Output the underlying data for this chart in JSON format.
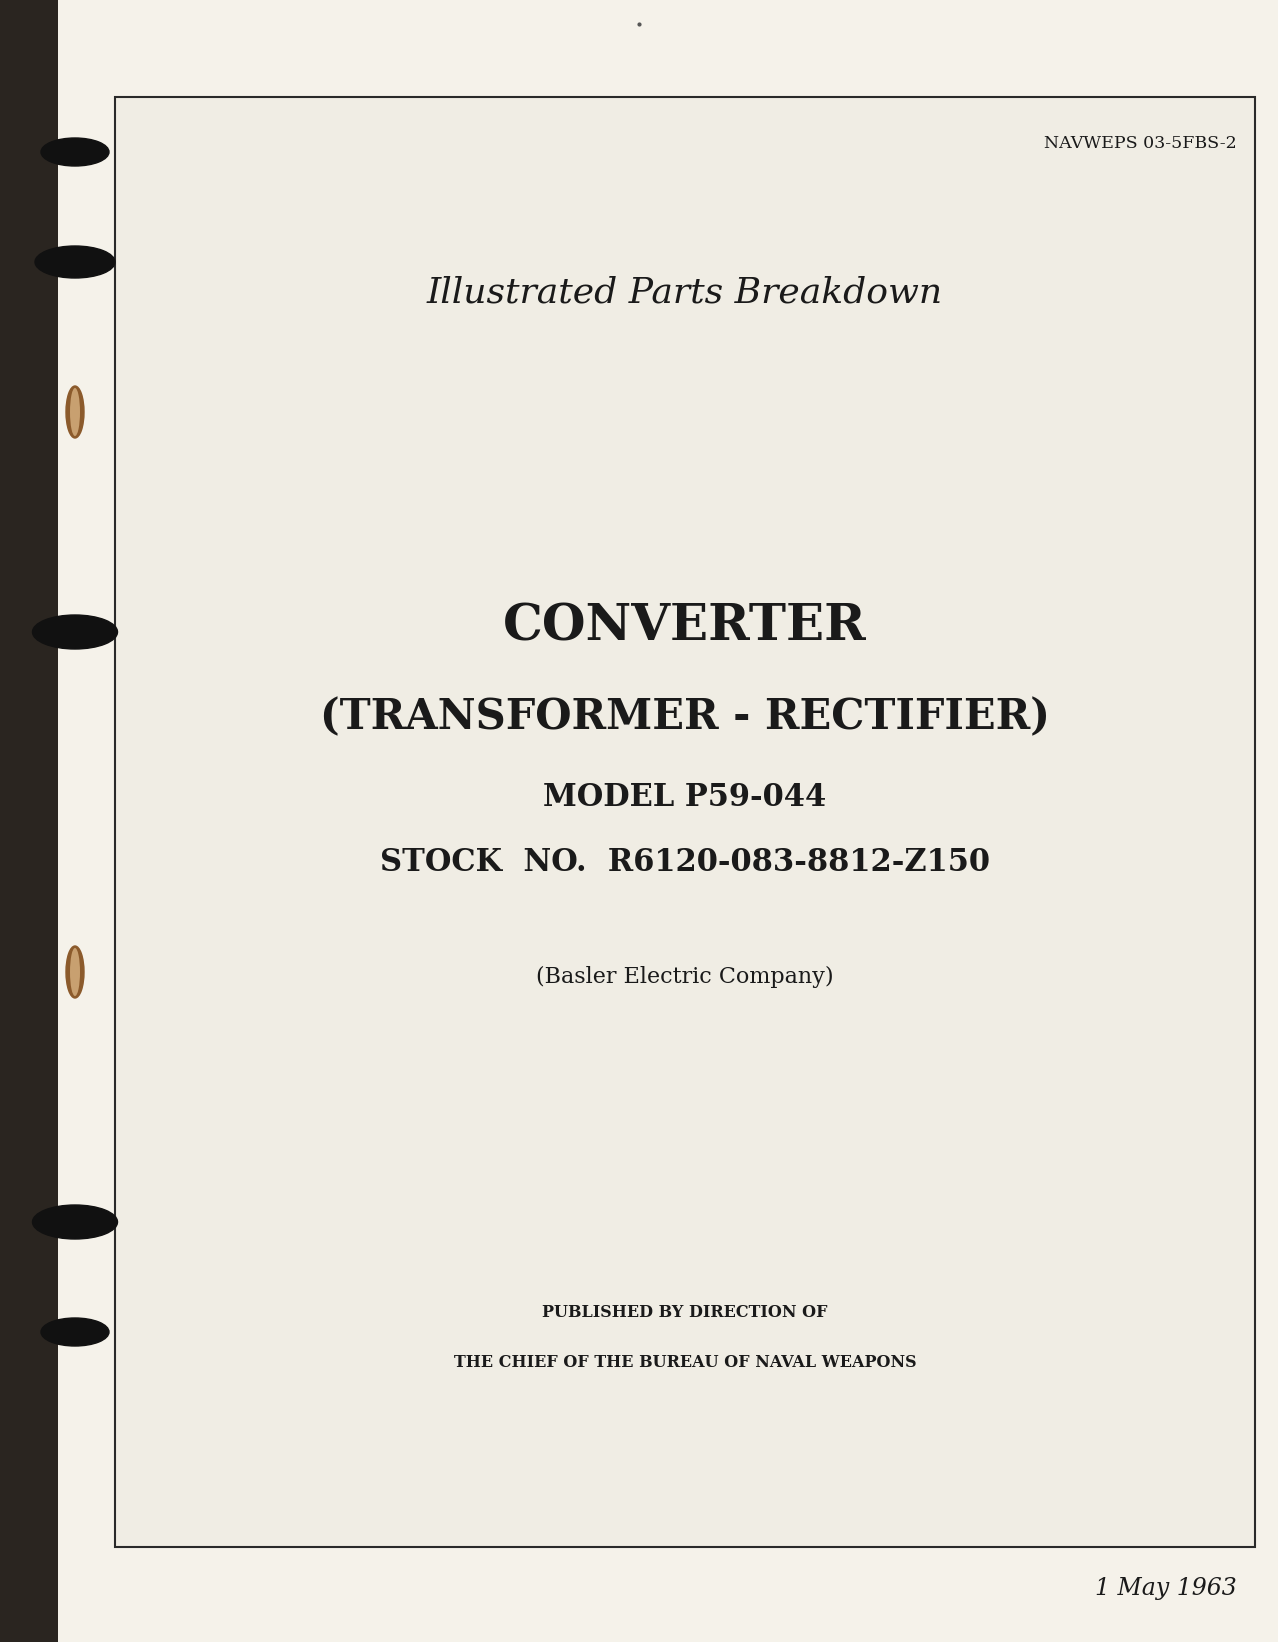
{
  "bg_color": "#f5f2ea",
  "page_bg": "#f5f2ea",
  "box_bg": "#f0ede4",
  "box_border": "#2a2a2a",
  "text_color": "#1a1a1a",
  "nav_ref": "NAVWEPS 03-5FBS-2",
  "title_line1": "Illustrated Parts Breakdown",
  "main_title_line1": "CONVERTER",
  "main_title_line2": "(TRANSFORMER - RECTIFIER)",
  "model_line": "MODEL P59-044",
  "stock_line": "STOCK  NO.  R6120-083-8812-Z150",
  "company_line": "(Basler Electric Company)",
  "published_line1": "PUBLISHED BY DIRECTION OF",
  "published_line2": "THE CHIEF OF THE BUREAU OF NAVAL WEAPONS",
  "date_line": "1 May 1963",
  "spine_color": "#1a1a1a",
  "hole_color": "#111111",
  "small_dot_color": "#2a2a2a",
  "ring_color_brown": "#8B5A2B"
}
